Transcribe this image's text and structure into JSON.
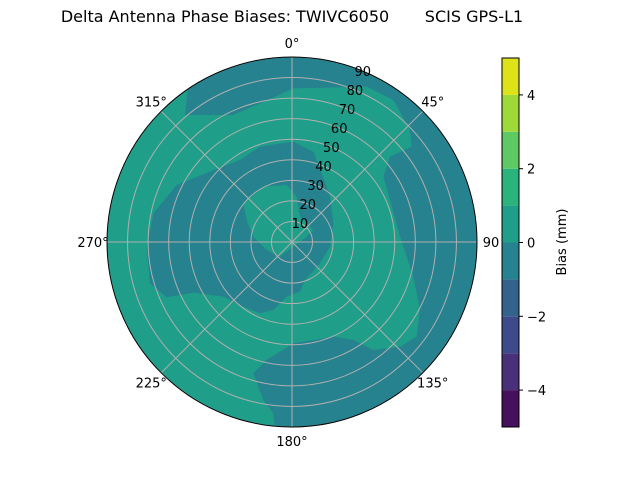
{
  "chart_data": {
    "type": "polar-contour",
    "title": "Delta Antenna Phase Biases: TWIVC6050       SCIS GPS-L1",
    "angular_ticks": [
      "0°",
      "45°",
      "90",
      "135°",
      "180°",
      "225°",
      "270°",
      "315°"
    ],
    "radial_ticks": [
      "10",
      "20",
      "30",
      "40",
      "50",
      "60",
      "70",
      "80",
      "90"
    ],
    "radial_range": [
      0,
      90
    ],
    "grid": true,
    "colorbar": {
      "label": "Bias (mm)",
      "range": [
        -5,
        5
      ],
      "levels": [
        -5,
        -4,
        -3,
        -2,
        -1,
        0,
        1,
        2,
        3,
        4,
        5
      ],
      "tick_labels": [
        "−4",
        "−2",
        "0",
        "2",
        "4"
      ],
      "tick_values": [
        -4,
        -2,
        0,
        2,
        4
      ],
      "colors": [
        "#45115d",
        "#48307b",
        "#3e4b8a",
        "#33638d",
        "#26828e",
        "#1f9e89",
        "#2ab37c",
        "#5ec962",
        "#9ed93a",
        "#dde318"
      ]
    },
    "regions": [
      {
        "level_range": [
          -1,
          0
        ],
        "color": "#26828e",
        "description_area": "background, north-east rim, east rim, south rim, center ring"
      },
      {
        "level_range": [
          0,
          1
        ],
        "color": "#1f9e89",
        "description_area": "west rim band, central band, inner core"
      }
    ]
  }
}
